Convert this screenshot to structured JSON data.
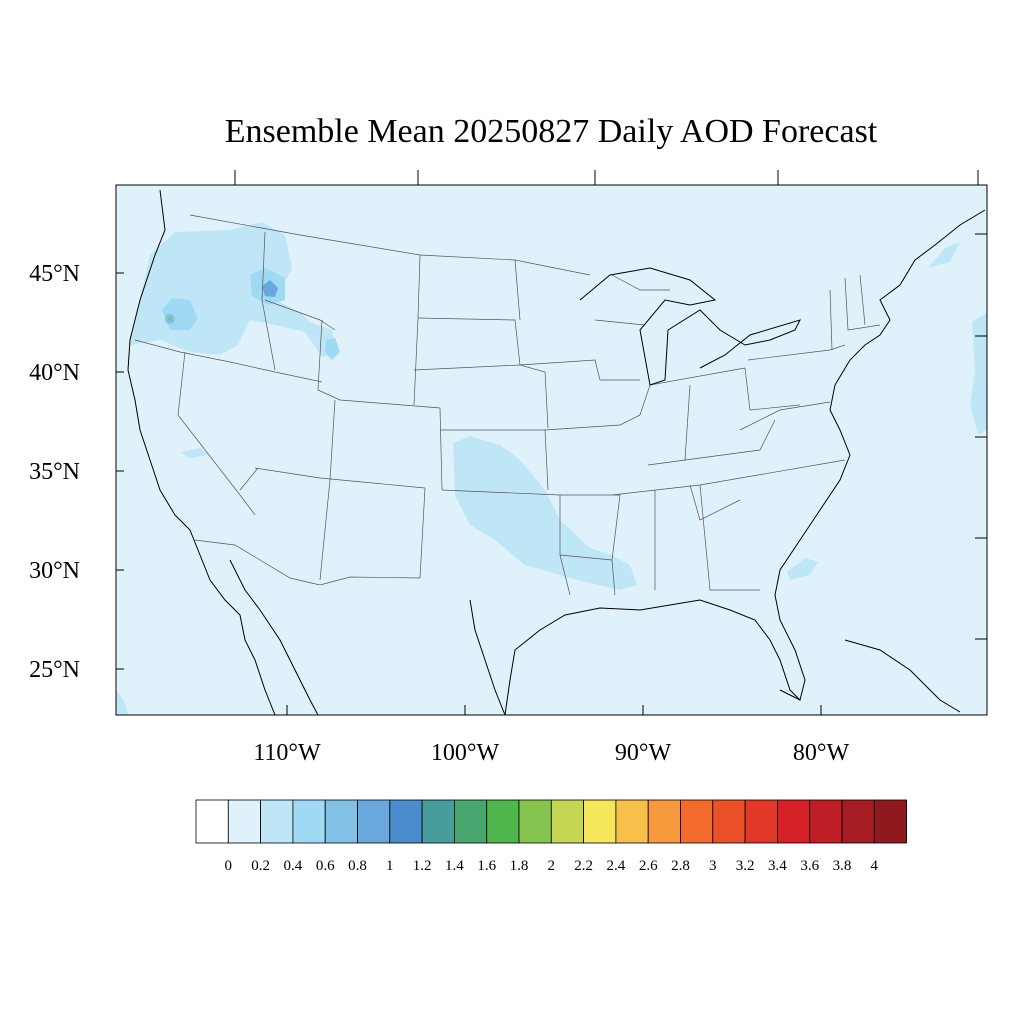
{
  "title": "Ensemble Mean 20250827 Daily AOD Forecast",
  "lat_labels": [
    "45°N",
    "40°N",
    "35°N",
    "30°N",
    "25°N"
  ],
  "lon_labels": [
    "110°W",
    "100°W",
    "90°W",
    "80°W"
  ],
  "colorbar": {
    "labels": [
      "0",
      "0.2",
      "0.4",
      "0.6",
      "0.8",
      "1",
      "1.2",
      "1.4",
      "1.6",
      "1.8",
      "2",
      "2.2",
      "2.4",
      "2.6",
      "2.8",
      "3",
      "3.2",
      "3.4",
      "3.6",
      "3.8",
      "4"
    ],
    "colors": [
      "#ffffff",
      "#dff2fb",
      "#bfe6f7",
      "#a0d9f3",
      "#82c0e5",
      "#68a8dc",
      "#4a8ccc",
      "#499c9c",
      "#48a66e",
      "#4db54a",
      "#85c54f",
      "#c4d654",
      "#f6e65b",
      "#f8bf4a",
      "#f69a3d",
      "#f26b2c",
      "#ea5129",
      "#e13828",
      "#d62028",
      "#be1e26",
      "#a51c23",
      "#8e1a1f"
    ]
  },
  "map": {
    "background_color": "#dff2fb",
    "plume_color": "#bfe6f7",
    "hotspot_color": "#82c0e5",
    "peak_color": "#4a8ccc",
    "green_color": "#85c54f"
  }
}
